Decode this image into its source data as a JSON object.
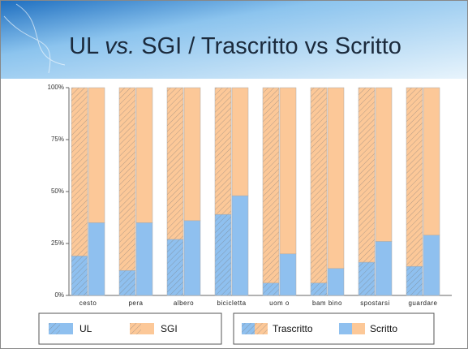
{
  "chart_data": {
    "type": "bar",
    "stacked": true,
    "title": {
      "before": "UL",
      "italic": "vs.",
      "after": "SGI / Trascritto vs Scritto"
    },
    "categories": [
      "cesto",
      "pera",
      "albero",
      "bicicletta",
      "uom o",
      "bam bino",
      "spostarsi",
      "guardare"
    ],
    "styles": [
      {
        "name": "Trascritto",
        "hatched": true
      },
      {
        "name": "Scritto",
        "hatched": false
      }
    ],
    "series": [
      {
        "name": "UL",
        "color": "#8fc0ef",
        "values": [
          [
            19,
            12,
            27,
            39,
            6,
            6,
            16,
            14
          ],
          [
            35,
            35,
            36,
            48,
            20,
            13,
            26,
            29
          ]
        ]
      },
      {
        "name": "SGI",
        "color": "#fcc898",
        "values": [
          [
            81,
            88,
            73,
            61,
            94,
            94,
            84,
            86
          ],
          [
            65,
            65,
            64,
            52,
            80,
            87,
            74,
            71
          ]
        ]
      }
    ],
    "ylim": [
      0,
      100
    ],
    "yticks": [
      {
        "value": 0,
        "label": "0%"
      },
      {
        "value": 25,
        "label": "25%"
      },
      {
        "value": 50,
        "label": "50%"
      },
      {
        "value": 75,
        "label": "75%"
      },
      {
        "value": 100,
        "label": "100%"
      }
    ]
  }
}
